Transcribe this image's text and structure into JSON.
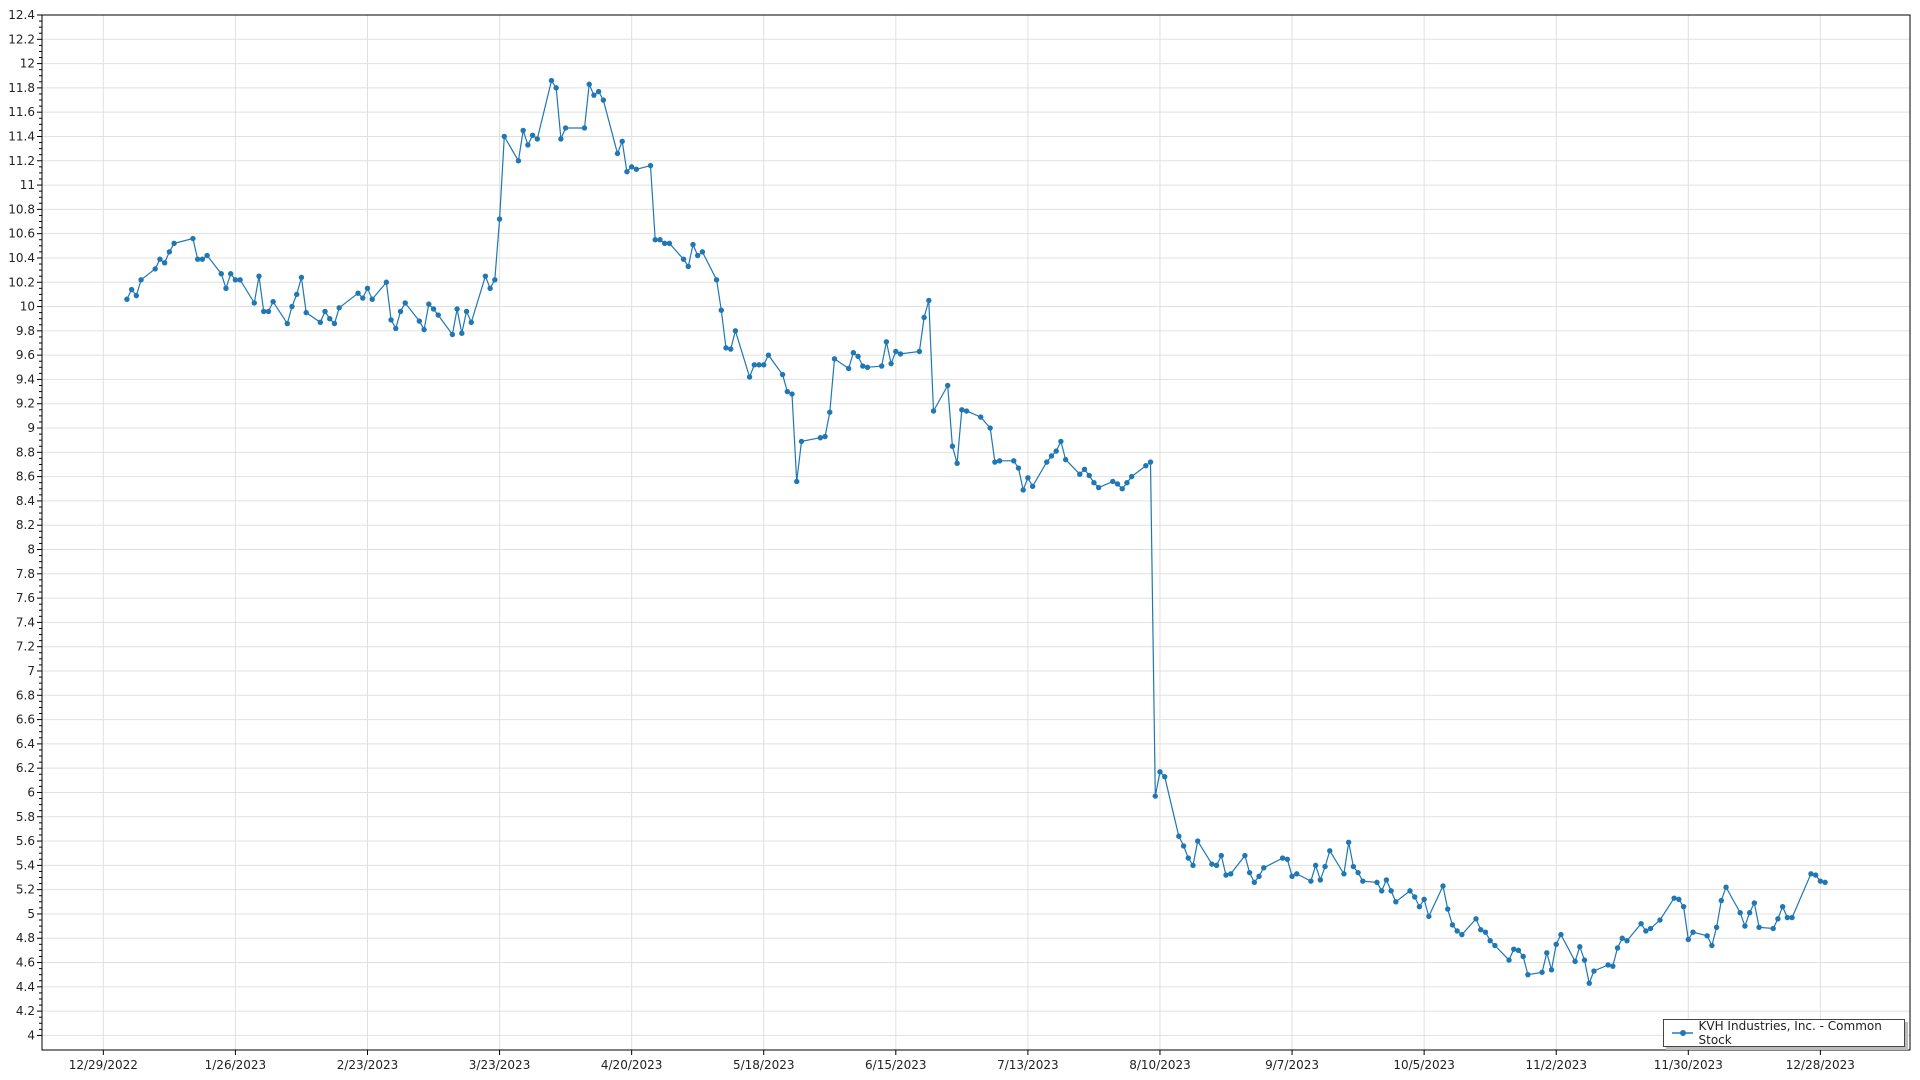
{
  "chart_data": {
    "type": "line",
    "title": "",
    "xlabel": "",
    "ylabel": "",
    "ylim": [
      3.88,
      12.4
    ],
    "xlim": [
      "2022-12-16",
      "2024-01-16"
    ],
    "grid": true,
    "legend_position": "bottom-right",
    "x_tick_labels": [
      "12/29/2022",
      "1/26/2023",
      "2/23/2023",
      "3/23/2023",
      "4/20/2023",
      "5/18/2023",
      "6/15/2023",
      "7/13/2023",
      "8/10/2023",
      "9/7/2023",
      "10/5/2023",
      "11/2/2023",
      "11/30/2023",
      "12/28/2023"
    ],
    "y_tick_labels": [
      "4",
      "4.2",
      "4.4",
      "4.6",
      "4.8",
      "5",
      "5.2",
      "5.4",
      "5.6",
      "5.8",
      "6",
      "6.2",
      "6.4",
      "6.6",
      "6.8",
      "7",
      "7.2",
      "7.4",
      "7.6",
      "7.8",
      "8",
      "8.2",
      "8.4",
      "8.6",
      "8.8",
      "9",
      "9.2",
      "9.4",
      "9.6",
      "9.8",
      "10",
      "10.2",
      "10.4",
      "10.6",
      "10.8",
      "11",
      "11.2",
      "11.4",
      "11.6",
      "11.8",
      "12",
      "12.2",
      "12.4"
    ],
    "colors": {
      "line": "#1f77b4",
      "grid": "#e0e0e0",
      "axis": "#000000"
    },
    "series": [
      {
        "name": "KVH Industries, Inc. - Common Stock",
        "points": [
          [
            "2023-01-03",
            10.06
          ],
          [
            "2023-01-04",
            10.14
          ],
          [
            "2023-01-05",
            10.09
          ],
          [
            "2023-01-06",
            10.22
          ],
          [
            "2023-01-09",
            10.31
          ],
          [
            "2023-01-10",
            10.39
          ],
          [
            "2023-01-11",
            10.36
          ],
          [
            "2023-01-12",
            10.45
          ],
          [
            "2023-01-13",
            10.52
          ],
          [
            "2023-01-17",
            10.56
          ],
          [
            "2023-01-18",
            10.39
          ],
          [
            "2023-01-19",
            10.39
          ],
          [
            "2023-01-20",
            10.42
          ],
          [
            "2023-01-23",
            10.27
          ],
          [
            "2023-01-24",
            10.15
          ],
          [
            "2023-01-25",
            10.27
          ],
          [
            "2023-01-26",
            10.22
          ],
          [
            "2023-01-27",
            10.22
          ],
          [
            "2023-01-30",
            10.03
          ],
          [
            "2023-01-31",
            10.25
          ],
          [
            "2023-02-01",
            9.96
          ],
          [
            "2023-02-02",
            9.96
          ],
          [
            "2023-02-03",
            10.04
          ],
          [
            "2023-02-06",
            9.86
          ],
          [
            "2023-02-07",
            10.0
          ],
          [
            "2023-02-08",
            10.1
          ],
          [
            "2023-02-09",
            10.24
          ],
          [
            "2023-02-10",
            9.95
          ],
          [
            "2023-02-13",
            9.87
          ],
          [
            "2023-02-14",
            9.96
          ],
          [
            "2023-02-15",
            9.9
          ],
          [
            "2023-02-16",
            9.86
          ],
          [
            "2023-02-17",
            9.99
          ],
          [
            "2023-02-21",
            10.11
          ],
          [
            "2023-02-22",
            10.07
          ],
          [
            "2023-02-23",
            10.15
          ],
          [
            "2023-02-24",
            10.06
          ],
          [
            "2023-02-27",
            10.2
          ],
          [
            "2023-02-28",
            9.89
          ],
          [
            "2023-03-01",
            9.82
          ],
          [
            "2023-03-02",
            9.96
          ],
          [
            "2023-03-03",
            10.03
          ],
          [
            "2023-03-06",
            9.88
          ],
          [
            "2023-03-07",
            9.81
          ],
          [
            "2023-03-08",
            10.02
          ],
          [
            "2023-03-09",
            9.98
          ],
          [
            "2023-03-10",
            9.93
          ],
          [
            "2023-03-13",
            9.77
          ],
          [
            "2023-03-14",
            9.98
          ],
          [
            "2023-03-15",
            9.78
          ],
          [
            "2023-03-16",
            9.96
          ],
          [
            "2023-03-17",
            9.87
          ],
          [
            "2023-03-20",
            10.25
          ],
          [
            "2023-03-21",
            10.15
          ],
          [
            "2023-03-22",
            10.22
          ],
          [
            "2023-03-23",
            10.72
          ],
          [
            "2023-03-24",
            11.4
          ],
          [
            "2023-03-27",
            11.2
          ],
          [
            "2023-03-28",
            11.45
          ],
          [
            "2023-03-29",
            11.33
          ],
          [
            "2023-03-30",
            11.41
          ],
          [
            "2023-03-31",
            11.38
          ],
          [
            "2023-04-03",
            11.86
          ],
          [
            "2023-04-04",
            11.8
          ],
          [
            "2023-04-05",
            11.38
          ],
          [
            "2023-04-06",
            11.47
          ],
          [
            "2023-04-10",
            11.47
          ],
          [
            "2023-04-11",
            11.83
          ],
          [
            "2023-04-12",
            11.74
          ],
          [
            "2023-04-13",
            11.77
          ],
          [
            "2023-04-14",
            11.7
          ],
          [
            "2023-04-17",
            11.26
          ],
          [
            "2023-04-18",
            11.36
          ],
          [
            "2023-04-19",
            11.11
          ],
          [
            "2023-04-20",
            11.15
          ],
          [
            "2023-04-21",
            11.13
          ],
          [
            "2023-04-24",
            11.16
          ],
          [
            "2023-04-25",
            10.55
          ],
          [
            "2023-04-26",
            10.55
          ],
          [
            "2023-04-27",
            10.52
          ],
          [
            "2023-04-28",
            10.52
          ],
          [
            "2023-05-01",
            10.39
          ],
          [
            "2023-05-02",
            10.33
          ],
          [
            "2023-05-03",
            10.51
          ],
          [
            "2023-05-04",
            10.42
          ],
          [
            "2023-05-05",
            10.45
          ],
          [
            "2023-05-08",
            10.22
          ],
          [
            "2023-05-09",
            9.97
          ],
          [
            "2023-05-10",
            9.66
          ],
          [
            "2023-05-11",
            9.65
          ],
          [
            "2023-05-12",
            9.8
          ],
          [
            "2023-05-15",
            9.42
          ],
          [
            "2023-05-16",
            9.52
          ],
          [
            "2023-05-17",
            9.52
          ],
          [
            "2023-05-18",
            9.52
          ],
          [
            "2023-05-19",
            9.6
          ],
          [
            "2023-05-22",
            9.44
          ],
          [
            "2023-05-23",
            9.3
          ],
          [
            "2023-05-24",
            9.28
          ],
          [
            "2023-05-25",
            8.56
          ],
          [
            "2023-05-26",
            8.89
          ],
          [
            "2023-05-30",
            8.92
          ],
          [
            "2023-05-31",
            8.93
          ],
          [
            "2023-06-01",
            9.13
          ],
          [
            "2023-06-02",
            9.57
          ],
          [
            "2023-06-05",
            9.49
          ],
          [
            "2023-06-06",
            9.62
          ],
          [
            "2023-06-07",
            9.59
          ],
          [
            "2023-06-08",
            9.51
          ],
          [
            "2023-06-09",
            9.5
          ],
          [
            "2023-06-12",
            9.51
          ],
          [
            "2023-06-13",
            9.71
          ],
          [
            "2023-06-14",
            9.53
          ],
          [
            "2023-06-15",
            9.63
          ],
          [
            "2023-06-16",
            9.61
          ],
          [
            "2023-06-20",
            9.63
          ],
          [
            "2023-06-21",
            9.91
          ],
          [
            "2023-06-22",
            10.05
          ],
          [
            "2023-06-23",
            9.14
          ],
          [
            "2023-06-26",
            9.35
          ],
          [
            "2023-06-27",
            8.85
          ],
          [
            "2023-06-28",
            8.71
          ],
          [
            "2023-06-29",
            9.15
          ],
          [
            "2023-06-30",
            9.14
          ],
          [
            "2023-07-03",
            9.09
          ],
          [
            "2023-07-05",
            9.0
          ],
          [
            "2023-07-06",
            8.72
          ],
          [
            "2023-07-07",
            8.73
          ],
          [
            "2023-07-10",
            8.73
          ],
          [
            "2023-07-11",
            8.67
          ],
          [
            "2023-07-12",
            8.49
          ],
          [
            "2023-07-13",
            8.59
          ],
          [
            "2023-07-14",
            8.52
          ],
          [
            "2023-07-17",
            8.72
          ],
          [
            "2023-07-18",
            8.77
          ],
          [
            "2023-07-19",
            8.81
          ],
          [
            "2023-07-20",
            8.89
          ],
          [
            "2023-07-21",
            8.74
          ],
          [
            "2023-07-24",
            8.62
          ],
          [
            "2023-07-25",
            8.66
          ],
          [
            "2023-07-26",
            8.61
          ],
          [
            "2023-07-27",
            8.55
          ],
          [
            "2023-07-28",
            8.51
          ],
          [
            "2023-07-31",
            8.56
          ],
          [
            "2023-08-01",
            8.54
          ],
          [
            "2023-08-02",
            8.5
          ],
          [
            "2023-08-03",
            8.55
          ],
          [
            "2023-08-04",
            8.6
          ],
          [
            "2023-08-07",
            8.69
          ],
          [
            "2023-08-08",
            8.72
          ],
          [
            "2023-08-09",
            5.97
          ],
          [
            "2023-08-10",
            6.17
          ],
          [
            "2023-08-11",
            6.13
          ],
          [
            "2023-08-14",
            5.64
          ],
          [
            "2023-08-15",
            5.56
          ],
          [
            "2023-08-16",
            5.46
          ],
          [
            "2023-08-17",
            5.4
          ],
          [
            "2023-08-18",
            5.6
          ],
          [
            "2023-08-21",
            5.41
          ],
          [
            "2023-08-22",
            5.4
          ],
          [
            "2023-08-23",
            5.48
          ],
          [
            "2023-08-24",
            5.32
          ],
          [
            "2023-08-25",
            5.33
          ],
          [
            "2023-08-28",
            5.48
          ],
          [
            "2023-08-29",
            5.34
          ],
          [
            "2023-08-30",
            5.26
          ],
          [
            "2023-08-31",
            5.31
          ],
          [
            "2023-09-01",
            5.38
          ],
          [
            "2023-09-05",
            5.46
          ],
          [
            "2023-09-06",
            5.45
          ],
          [
            "2023-09-07",
            5.31
          ],
          [
            "2023-09-08",
            5.33
          ],
          [
            "2023-09-11",
            5.27
          ],
          [
            "2023-09-12",
            5.4
          ],
          [
            "2023-09-13",
            5.28
          ],
          [
            "2023-09-14",
            5.39
          ],
          [
            "2023-09-15",
            5.52
          ],
          [
            "2023-09-18",
            5.33
          ],
          [
            "2023-09-19",
            5.59
          ],
          [
            "2023-09-20",
            5.39
          ],
          [
            "2023-09-21",
            5.34
          ],
          [
            "2023-09-22",
            5.27
          ],
          [
            "2023-09-25",
            5.26
          ],
          [
            "2023-09-26",
            5.19
          ],
          [
            "2023-09-27",
            5.28
          ],
          [
            "2023-09-28",
            5.19
          ],
          [
            "2023-09-29",
            5.1
          ],
          [
            "2023-10-02",
            5.19
          ],
          [
            "2023-10-03",
            5.14
          ],
          [
            "2023-10-04",
            5.06
          ],
          [
            "2023-10-05",
            5.12
          ],
          [
            "2023-10-06",
            4.98
          ],
          [
            "2023-10-09",
            5.23
          ],
          [
            "2023-10-10",
            5.04
          ],
          [
            "2023-10-11",
            4.91
          ],
          [
            "2023-10-12",
            4.86
          ],
          [
            "2023-10-13",
            4.83
          ],
          [
            "2023-10-16",
            4.96
          ],
          [
            "2023-10-17",
            4.87
          ],
          [
            "2023-10-18",
            4.85
          ],
          [
            "2023-10-19",
            4.78
          ],
          [
            "2023-10-20",
            4.74
          ],
          [
            "2023-10-23",
            4.62
          ],
          [
            "2023-10-24",
            4.71
          ],
          [
            "2023-10-25",
            4.7
          ],
          [
            "2023-10-26",
            4.65
          ],
          [
            "2023-10-27",
            4.5
          ],
          [
            "2023-10-30",
            4.52
          ],
          [
            "2023-10-31",
            4.68
          ],
          [
            "2023-11-01",
            4.54
          ],
          [
            "2023-11-02",
            4.75
          ],
          [
            "2023-11-03",
            4.83
          ],
          [
            "2023-11-06",
            4.61
          ],
          [
            "2023-11-07",
            4.73
          ],
          [
            "2023-11-08",
            4.62
          ],
          [
            "2023-11-09",
            4.43
          ],
          [
            "2023-11-10",
            4.53
          ],
          [
            "2023-11-13",
            4.58
          ],
          [
            "2023-11-14",
            4.57
          ],
          [
            "2023-11-15",
            4.72
          ],
          [
            "2023-11-16",
            4.8
          ],
          [
            "2023-11-17",
            4.78
          ],
          [
            "2023-11-20",
            4.92
          ],
          [
            "2023-11-21",
            4.86
          ],
          [
            "2023-11-22",
            4.88
          ],
          [
            "2023-11-24",
            4.95
          ],
          [
            "2023-11-27",
            5.13
          ],
          [
            "2023-11-28",
            5.12
          ],
          [
            "2023-11-29",
            5.06
          ],
          [
            "2023-11-30",
            4.79
          ],
          [
            "2023-12-01",
            4.85
          ],
          [
            "2023-12-04",
            4.82
          ],
          [
            "2023-12-05",
            4.74
          ],
          [
            "2023-12-06",
            4.89
          ],
          [
            "2023-12-07",
            5.11
          ],
          [
            "2023-12-08",
            5.22
          ],
          [
            "2023-12-11",
            5.01
          ],
          [
            "2023-12-12",
            4.9
          ],
          [
            "2023-12-13",
            5.01
          ],
          [
            "2023-12-14",
            5.09
          ],
          [
            "2023-12-15",
            4.89
          ],
          [
            "2023-12-18",
            4.88
          ],
          [
            "2023-12-19",
            4.96
          ],
          [
            "2023-12-20",
            5.06
          ],
          [
            "2023-12-21",
            4.97
          ],
          [
            "2023-12-22",
            4.97
          ],
          [
            "2023-12-26",
            5.33
          ],
          [
            "2023-12-27",
            5.32
          ],
          [
            "2023-12-28",
            5.27
          ],
          [
            "2023-12-29",
            5.26
          ]
        ]
      }
    ]
  }
}
